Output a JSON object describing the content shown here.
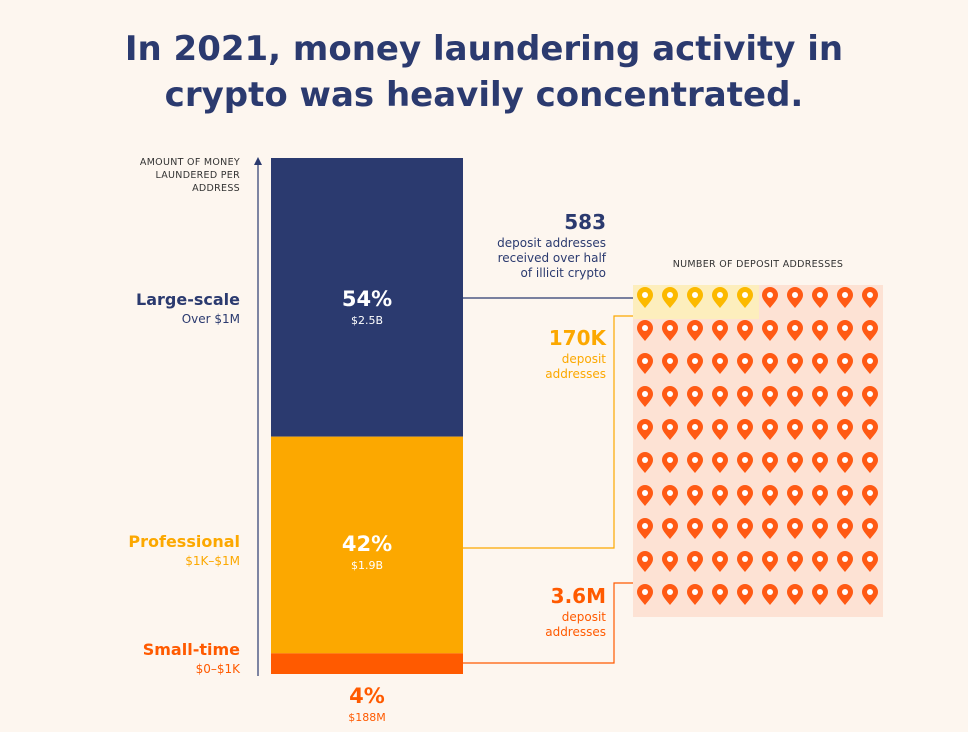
{
  "title_line1": "In 2021, money laundering activity in",
  "title_line2": "crypto was heavily concentrated.",
  "y_axis_label_lines": [
    "AMOUNT OF MONEY",
    "LAUNDERED PER",
    "ADDRESS"
  ],
  "grid_label": "NUMBER OF DEPOSIT ADDRESSES",
  "colors": {
    "navy": "#2b3a6f",
    "amber": "#fca800",
    "orange": "#ff5a00",
    "pin_orange": "#ff5a14",
    "pin_yellow": "#fcb900"
  },
  "categories": [
    {
      "name": "Large-scale",
      "range": "Over $1M",
      "pct": "54%",
      "amount": "$2.5B"
    },
    {
      "name": "Professional",
      "range": "$1K–$1M",
      "pct": "42%",
      "amount": "$1.9B"
    },
    {
      "name": "Small-time",
      "range": "$0–$1K",
      "pct": "4%",
      "amount": "$188M"
    }
  ],
  "callouts": [
    {
      "number": "583",
      "lines": [
        "deposit addresses",
        "received over half",
        "of illicit crypto"
      ]
    },
    {
      "number": "170K",
      "lines": [
        "deposit",
        "addresses"
      ]
    },
    {
      "number": "3.6M",
      "lines": [
        "deposit",
        "addresses"
      ]
    }
  ],
  "chart_data": {
    "type": "bar",
    "stacked": true,
    "title": "In 2021, money laundering activity in crypto was heavily concentrated.",
    "ylabel": "AMOUNT OF MONEY LAUNDERED PER ADDRESS",
    "categories": [
      "Large-scale",
      "Professional",
      "Small-time"
    ],
    "values": [
      54,
      42,
      4
    ],
    "amounts": [
      "$2.5B",
      "$1.9B",
      "$188M"
    ],
    "deposit_addresses": [
      "583",
      "170K",
      "3.6M"
    ],
    "pictogram": {
      "rows": 10,
      "cols": 10,
      "highlighted_pins": 5
    }
  }
}
